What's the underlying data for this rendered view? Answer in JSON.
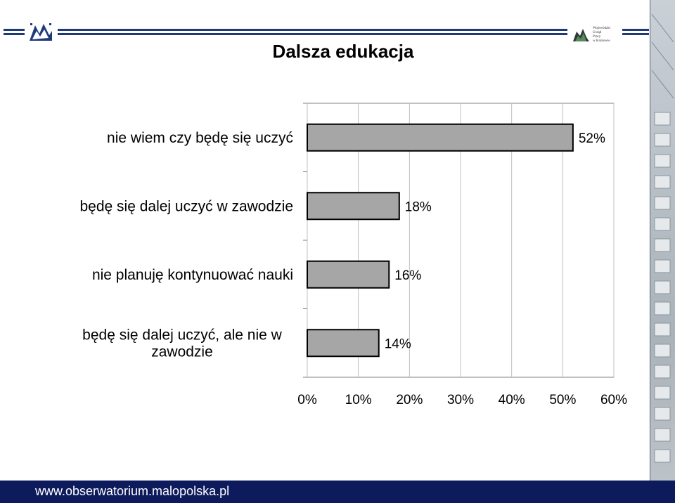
{
  "page": {
    "title": "Dalsza edukacja",
    "footer_url": "www.obserwatorium.malopolska.pl",
    "logo_right_text": [
      "Wojewódzki",
      "Urząd",
      "Pracy",
      "w Krakowie"
    ]
  },
  "colors": {
    "bar_fill": "#a6a6a6",
    "bar_stroke": "#000000",
    "grid": "#c0c0c0",
    "footer_bg": "#0d1b5c",
    "header_lines": "#1f3a7a"
  },
  "chart_data": {
    "type": "bar",
    "orientation": "horizontal",
    "title": "Dalsza edukacja",
    "categories": [
      [
        "nie wiem czy będę się uczyć"
      ],
      [
        "będę się dalej uczyć w zawodzie"
      ],
      [
        "nie planuję kontynuować nauki"
      ],
      [
        "będę się dalej uczyć, ale nie w",
        "zawodzie"
      ]
    ],
    "values": [
      52,
      18,
      16,
      14
    ],
    "value_labels": [
      "52%",
      "18%",
      "16%",
      "14%"
    ],
    "xlim": [
      0,
      60
    ],
    "xticks": [
      0,
      10,
      20,
      30,
      40,
      50,
      60
    ],
    "xtick_labels": [
      "0%",
      "10%",
      "20%",
      "30%",
      "40%",
      "50%",
      "60%"
    ],
    "grid": true,
    "legend": "none"
  }
}
